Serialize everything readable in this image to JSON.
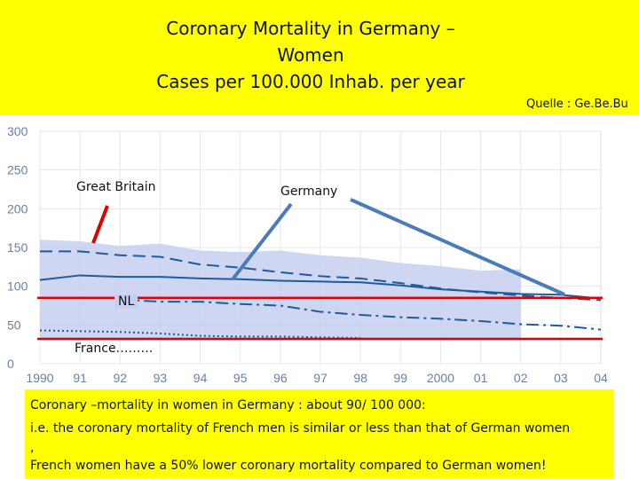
{
  "header": {
    "title_lines": [
      "Coronary  Mortality  in Germany –",
      "Women",
      "Cases per 100.000 Inhab. per  year"
    ],
    "source": "Quelle : Ge.Be.Bu"
  },
  "colors": {
    "banner": "#ffff00",
    "series": "#1f5a9e",
    "band": "#c5cfee",
    "reference_line": "#e00000",
    "arrow_red": "#e00000",
    "arrow_blue": "#4a7cb8",
    "axis_text": "#6a7fa6"
  },
  "labels": {
    "great_britain": "Great Britain",
    "germany": "Germany",
    "nl": "NL",
    "france": "France………"
  },
  "note": {
    "lines": [
      "Coronary –mortality in women  in Germany :  about 90/ 100 000:",
      "i.e. the coronary mortality of French men is similar or less than that of German women",
      ",",
      "French women have a 50% lower coronary mortality  compared to German women!"
    ]
  },
  "chart_data": {
    "type": "line",
    "title": "Coronary  Mortality  in Germany – Women",
    "ylabel": "Cases per 100.000 Inhab. per  year",
    "x_ticks": [
      "1990",
      "91",
      "92",
      "93",
      "94",
      "95",
      "96",
      "97",
      "98",
      "99",
      "2000",
      "01",
      "02",
      "03",
      "04"
    ],
    "y_ticks": [
      0,
      50,
      100,
      150,
      200,
      250,
      300
    ],
    "ylim": [
      0,
      300
    ],
    "x": [
      1990,
      1991,
      1992,
      1993,
      1994,
      1995,
      1996,
      1997,
      1998,
      1999,
      2000,
      2001,
      2002,
      2003,
      2004
    ],
    "series": [
      {
        "name": "Great Britain",
        "style": "dashed",
        "values": [
          145,
          145,
          140,
          138,
          128,
          124,
          118,
          113,
          110,
          104,
          97,
          92,
          88,
          85,
          82
        ]
      },
      {
        "name": "Germany",
        "style": "solid",
        "values": [
          108,
          114,
          112,
          112,
          110,
          109,
          107,
          106,
          105,
          101,
          96,
          93,
          90,
          89,
          84
        ]
      },
      {
        "name": "NL",
        "style": "dashdot",
        "values": [
          null,
          null,
          83,
          80,
          80,
          77,
          75,
          67,
          63,
          60,
          58,
          55,
          51,
          49,
          44
        ]
      },
      {
        "name": "France",
        "style": "dotted",
        "values": [
          43,
          42,
          41,
          39,
          36,
          35,
          35,
          34,
          33,
          null,
          null,
          null,
          null,
          null,
          null
        ]
      }
    ],
    "band": {
      "upper": [
        160,
        158,
        152,
        155,
        146,
        144,
        146,
        140,
        137,
        130,
        126,
        120,
        122,
        null,
        null
      ],
      "lower": [
        30,
        30,
        30,
        30,
        30,
        30,
        30,
        30,
        30,
        30,
        30,
        30,
        30,
        null,
        null
      ]
    },
    "reference_lines": [
      {
        "value": 85
      },
      {
        "value": 32
      }
    ]
  }
}
